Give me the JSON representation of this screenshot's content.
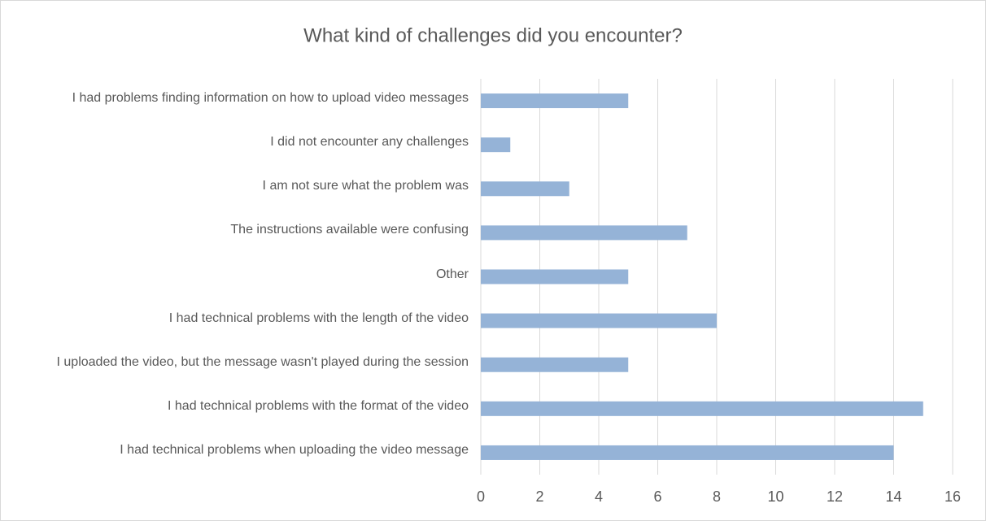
{
  "chart_data": {
    "type": "bar",
    "orientation": "horizontal",
    "title": "What kind of challenges did you encounter?",
    "categories": [
      "I had problems finding information on how to upload video messages",
      "I did not encounter any challenges",
      "I am not sure what the problem was",
      "The instructions available were confusing",
      "Other",
      "I had technical problems with the length of the video",
      "I uploaded the video, but the message wasn't played during the session",
      "I had technical problems with the format of the video",
      "I had technical problems when uploading the video message"
    ],
    "values": [
      5,
      1,
      3,
      7,
      5,
      8,
      5,
      15,
      14
    ],
    "color": "#95b3d7",
    "xlim": [
      0,
      16
    ],
    "xticks": [
      0,
      2,
      4,
      6,
      8,
      10,
      12,
      14,
      16
    ],
    "grid": true
  }
}
